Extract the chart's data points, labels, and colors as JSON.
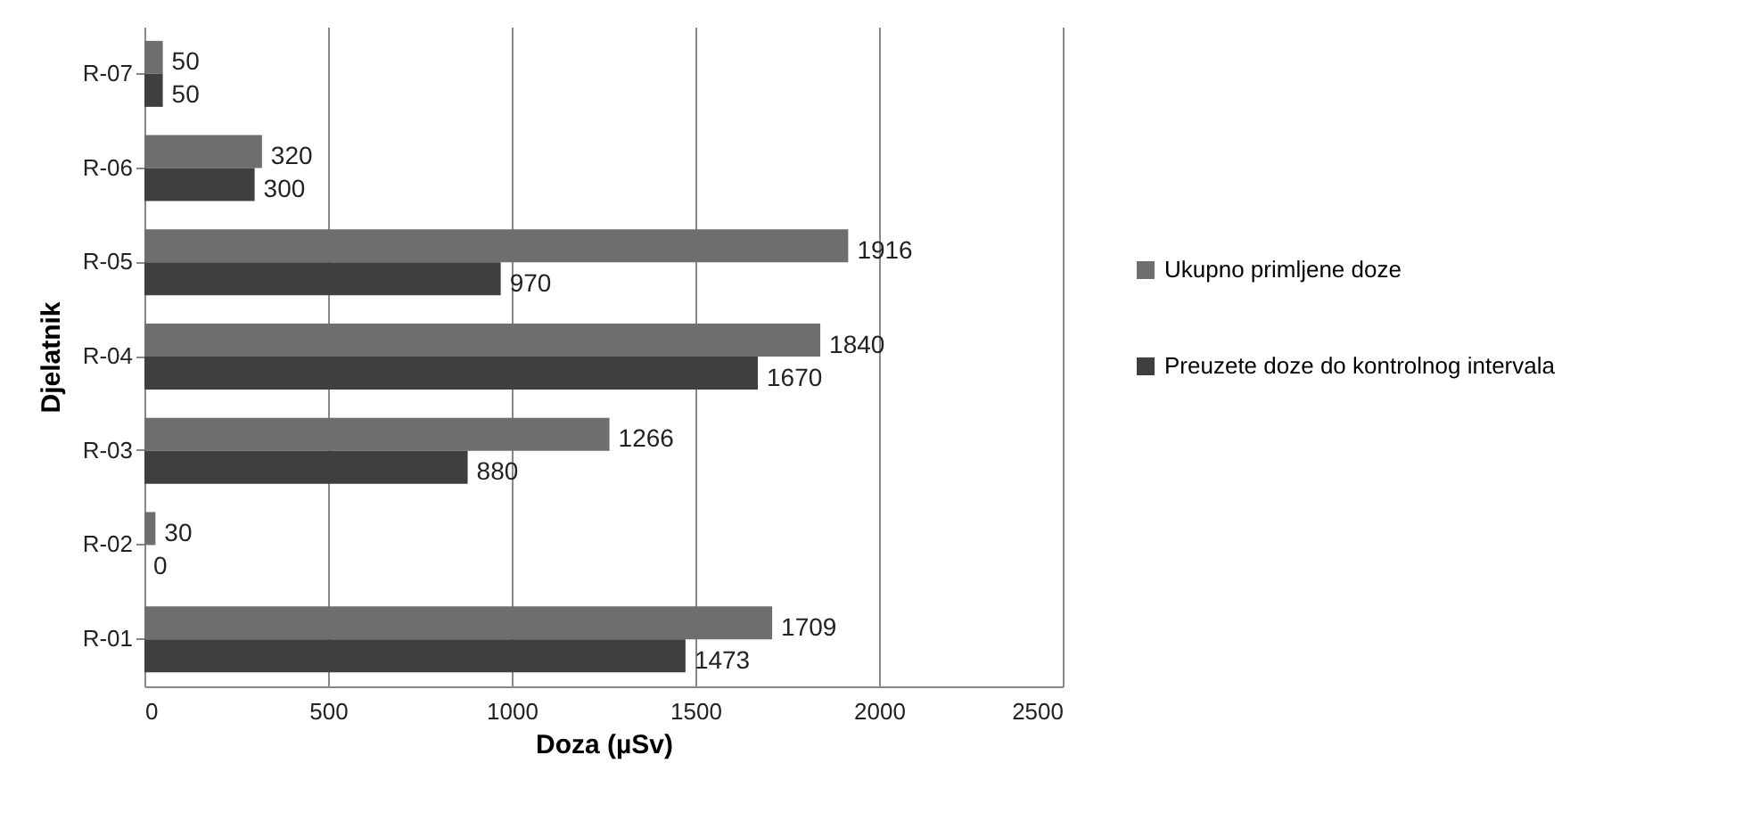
{
  "chart_data": {
    "type": "bar",
    "orientation": "horizontal",
    "xlabel": "Doza (µSv)",
    "ylabel": "Djelatnik",
    "categories": [
      "R-07",
      "R-06",
      "R-05",
      "R-04",
      "R-03",
      "R-02",
      "R-01"
    ],
    "series": [
      {
        "name": "Ukupno primljene doze",
        "color": "#6e6e6e",
        "values": [
          50,
          320,
          1916,
          1840,
          1266,
          30,
          1709
        ]
      },
      {
        "name": "Preuzete doze do kontrolnog intervala",
        "color": "#3f3f3f",
        "values": [
          50,
          300,
          970,
          1670,
          880,
          0,
          1473
        ]
      }
    ],
    "xlim": [
      0,
      2500
    ],
    "xticks": [
      0,
      500,
      1000,
      1500,
      2000,
      2500
    ],
    "grid": "x",
    "legend": "right",
    "data_labels": true
  }
}
